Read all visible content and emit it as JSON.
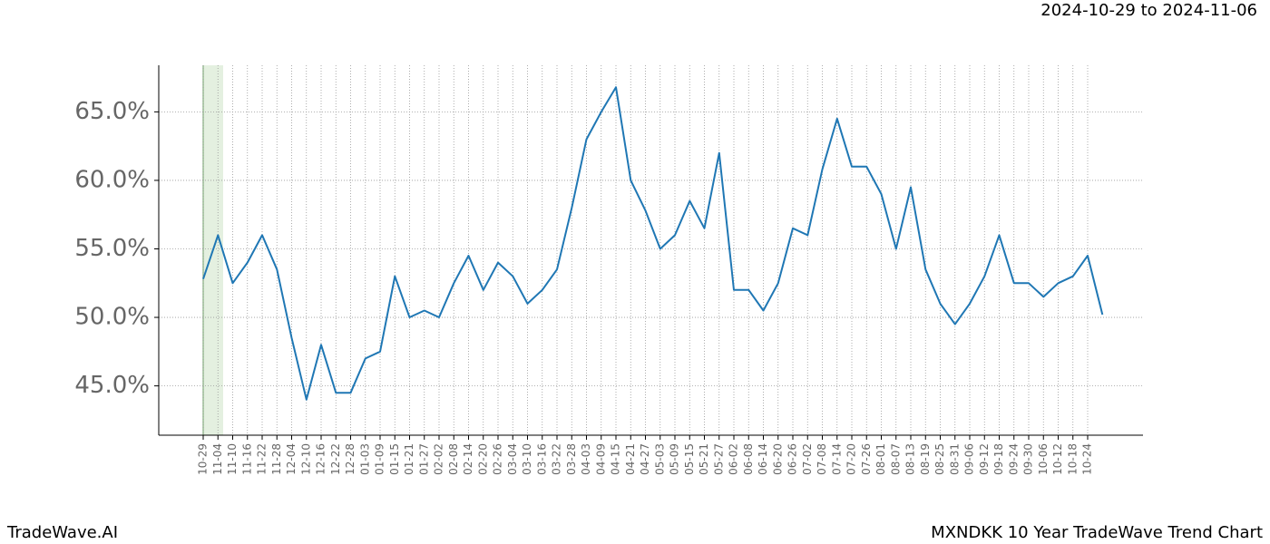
{
  "chart_data": {
    "type": "line",
    "date_range": "2024-10-29 to 2024-11-06",
    "brand": "TradeWave.AI",
    "title": "MXNDKK 10 Year TradeWave Trend Chart",
    "categories": [
      "10-29",
      "11-04",
      "11-10",
      "11-16",
      "11-22",
      "11-28",
      "12-04",
      "12-10",
      "12-16",
      "12-22",
      "12-28",
      "01-03",
      "01-09",
      "01-15",
      "01-21",
      "01-27",
      "02-02",
      "02-08",
      "02-14",
      "02-20",
      "02-26",
      "03-04",
      "03-10",
      "03-16",
      "03-22",
      "03-28",
      "04-03",
      "04-09",
      "04-15",
      "04-21",
      "04-27",
      "05-03",
      "05-09",
      "05-15",
      "05-21",
      "05-27",
      "06-02",
      "06-08",
      "06-14",
      "06-20",
      "06-26",
      "07-02",
      "07-08",
      "07-14",
      "07-20",
      "07-26",
      "08-01",
      "08-07",
      "08-13",
      "08-19",
      "08-25",
      "08-31",
      "09-06",
      "09-12",
      "09-18",
      "09-24",
      "09-30",
      "10-06",
      "10-12",
      "10-18",
      "10-24",
      null
    ],
    "values": [
      52.8,
      56,
      52.5,
      54,
      56,
      53.5,
      48.5,
      44,
      48,
      44.5,
      44.5,
      47,
      47.5,
      53,
      50,
      50.5,
      50,
      52.5,
      54.5,
      52,
      54,
      53,
      51,
      52,
      53.5,
      58,
      63,
      65,
      66.8,
      60,
      57.8,
      55,
      56,
      58.5,
      56.5,
      62,
      52,
      52,
      50.5,
      52.5,
      56.5,
      56,
      60.8,
      64.5,
      61,
      61,
      59,
      55,
      59.5,
      53.5,
      51,
      49.5,
      51,
      53,
      56,
      52.5,
      52.5,
      51.5,
      52.5,
      53,
      54.5,
      50.2
    ],
    "color": "#1f77b4",
    "ylim": [
      41.4,
      68.4
    ],
    "yticks": [
      {
        "value": 45,
        "label": "45.0%"
      },
      {
        "value": 50,
        "label": "50.0%"
      },
      {
        "value": 55,
        "label": "55.0%"
      },
      {
        "value": 60,
        "label": "60.0%"
      },
      {
        "value": 65,
        "label": "65.0%"
      }
    ],
    "grid": true
  }
}
